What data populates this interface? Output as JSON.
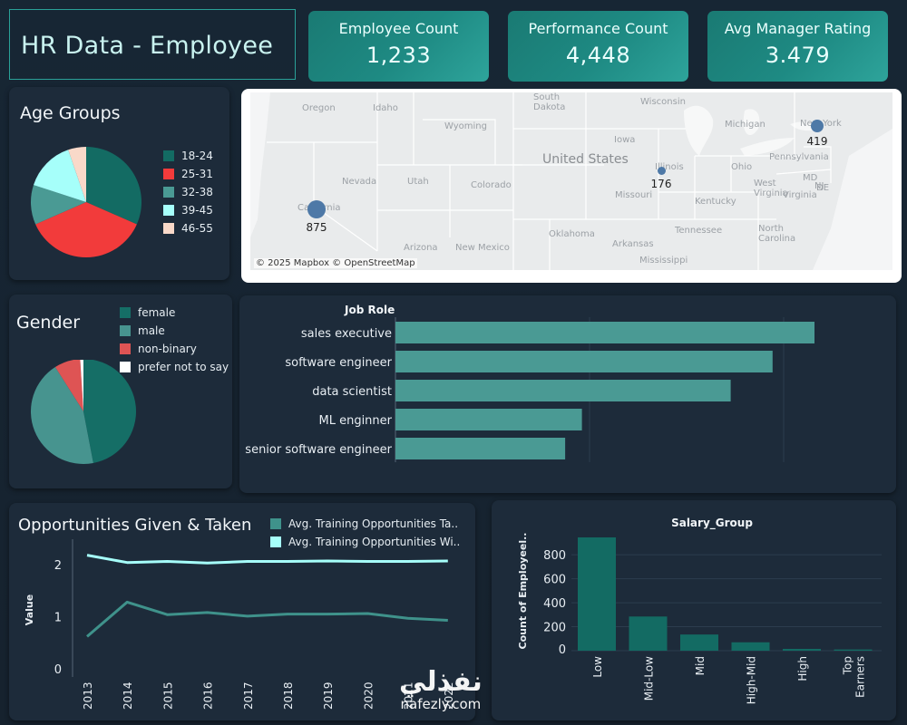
{
  "header": {
    "title": "HR Data - Employee"
  },
  "kpis": [
    {
      "label": "Employee Count",
      "value": "1,233"
    },
    {
      "label": "Performance Count",
      "value": "4,448"
    },
    {
      "label": "Avg Manager Rating",
      "value": "3.479"
    }
  ],
  "age": {
    "title": "Age Groups",
    "legend": [
      "18-24",
      "25-31",
      "32-38",
      "39-45",
      "46-55"
    ],
    "colors": [
      "#136b63",
      "#f23b3b",
      "#4a9a94",
      "#a6fffa",
      "#f9d9c9"
    ]
  },
  "gender": {
    "title": "Gender",
    "legend": [
      "female",
      "male",
      "non-binary",
      "prefer not to say"
    ],
    "colors": [
      "#156e66",
      "#47948f",
      "#de5454",
      "#ffffff"
    ]
  },
  "map": {
    "attribution": "© 2025 Mapbox © OpenStreetMap",
    "labels": [
      "Oregon",
      "Idaho",
      "Wyoming",
      "South Dakota",
      "Wisconsin",
      "Michigan",
      "Iowa",
      "Illinois",
      "Ohio",
      "Pennsylvania",
      "Nevada",
      "Utah",
      "Colorado",
      "Missouri",
      "Kentucky",
      "West Virginia",
      "Virginia",
      "Arizona",
      "New Mexico",
      "Oklahoma",
      "Arkansas",
      "Tennessee",
      "North Carolina",
      "Mississippi",
      "United States",
      "California",
      "New York",
      "MD",
      "NJ",
      "DE"
    ],
    "markers": [
      {
        "label": "875",
        "value": 875
      },
      {
        "label": "176",
        "value": 176
      },
      {
        "label": "419",
        "value": 419
      }
    ]
  },
  "job_role": {
    "header": "Job Role",
    "roles": [
      "sales executive",
      "software engineer",
      "data scientist",
      "ML enginner",
      "senior software engineer"
    ]
  },
  "opportunities": {
    "title": "Opportunities Given & Taken",
    "legend": [
      "Avg. Training Opportunities Ta..",
      "Avg. Training Opportunities Wi.."
    ],
    "ylabel": "Value",
    "ticks": [
      "2",
      "1",
      "0"
    ]
  },
  "salary": {
    "title": "Salary_Group",
    "ylabel": "Count of Employeel..",
    "ticks": [
      "800",
      "600",
      "400",
      "200",
      "0"
    ]
  },
  "watermark": {
    "arabic": "نفذلي",
    "latin": "nafezly.com"
  },
  "chart_data": [
    {
      "type": "pie",
      "title": "Age Groups",
      "categories": [
        "18-24",
        "25-31",
        "32-38",
        "39-45",
        "46-55"
      ],
      "values": [
        30,
        35,
        11,
        14,
        5
      ]
    },
    {
      "type": "pie",
      "title": "Gender",
      "categories": [
        "female",
        "male",
        "non-binary",
        "prefer not to say"
      ],
      "values": [
        47,
        44,
        8,
        1
      ]
    },
    {
      "type": "bar",
      "orientation": "horizontal",
      "title": "Job Role",
      "categories": [
        "sales executive",
        "software engineer",
        "data scientist",
        "ML enginner",
        "senior software engineer"
      ],
      "values": [
        1000,
        900,
        800,
        445,
        405
      ],
      "xlim": [
        0,
        1100
      ]
    },
    {
      "type": "line",
      "title": "Opportunities Given & Taken",
      "ylabel": "Value",
      "x": [
        "2013",
        "2014",
        "2015",
        "2016",
        "2017",
        "2018",
        "2019",
        "2020",
        "2021",
        "2022"
      ],
      "ylim": [
        0,
        2.3
      ],
      "series": [
        {
          "name": "Avg. Training Opportunities Ta..",
          "color": "#3f928b",
          "values": [
            0.62,
            1.28,
            1.04,
            1.08,
            1.01,
            1.05,
            1.05,
            1.06,
            0.97,
            0.93
          ]
        },
        {
          "name": "Avg. Training Opportunities Wi..",
          "color": "#a6fffa",
          "values": [
            2.18,
            2.04,
            2.06,
            2.03,
            2.06,
            2.06,
            2.07,
            2.06,
            2.06,
            2.07
          ]
        }
      ]
    },
    {
      "type": "bar",
      "title": "Salary_Group",
      "ylabel": "Count of Employeel..",
      "categories": [
        "Low",
        "Mid-Low",
        "Mid",
        "High-Mid",
        "High",
        "Top Earners"
      ],
      "values": [
        945,
        285,
        135,
        70,
        15,
        10
      ],
      "ylim": [
        0,
        950
      ]
    }
  ]
}
